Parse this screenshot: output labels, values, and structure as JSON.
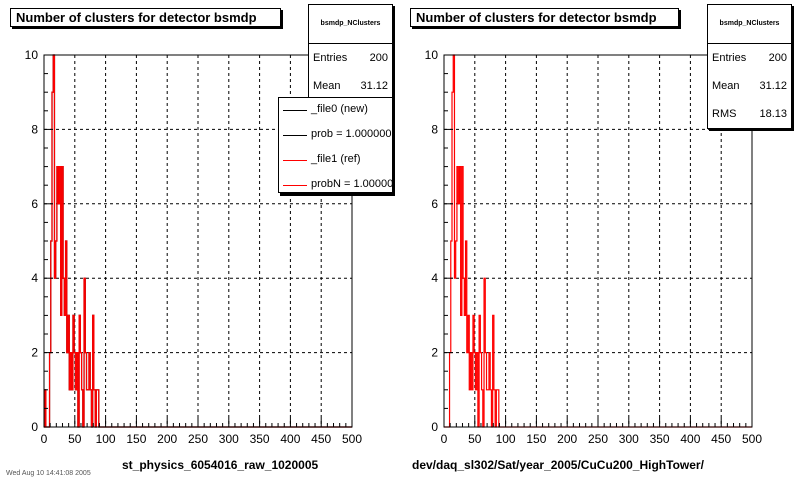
{
  "left_panel": {
    "title": "Number of clusters for detector bsmdp",
    "stats": {
      "name": "bsmdp_NClusters",
      "rows": [
        {
          "label": "Entries",
          "value": "200"
        },
        {
          "label": "Mean",
          "value": "31.12"
        }
      ]
    },
    "legend": [
      {
        "label": "_file0 (new)",
        "color": "#000000"
      },
      {
        "label": "prob = 1.000000",
        "color": "#000000"
      },
      {
        "label": "_file1 (ref)",
        "color": "#ff0000"
      },
      {
        "label": "probN = 1.000000",
        "color": "#ff0000"
      }
    ],
    "xtitle": "st_physics_6054016_raw_1020005"
  },
  "right_panel": {
    "title": "Number of clusters for detector bsmdp",
    "stats": {
      "name": "bsmdp_NClusters",
      "rows": [
        {
          "label": "Entries",
          "value": "200"
        },
        {
          "label": "Mean",
          "value": "31.12"
        },
        {
          "label": "RMS",
          "value": "18.13"
        }
      ]
    },
    "xtitle": "dev/daq_sl302/Sat/year_2005/CuCu200_HighTower/"
  },
  "footer": "Wed Aug 10 14:41:08 2005",
  "chart_data": [
    {
      "type": "histogram",
      "title": "Number of clusters for detector bsmdp",
      "xlabel": "st_physics_6054016_raw_1020005",
      "xlim": [
        0,
        500
      ],
      "ylim": [
        0,
        10
      ],
      "xticks": [
        0,
        50,
        100,
        150,
        200,
        250,
        300,
        350,
        400,
        450,
        500
      ],
      "yticks": [
        0,
        2,
        4,
        6,
        8,
        10
      ],
      "grid": true,
      "bin_width": 2,
      "series": [
        {
          "name": "_file0 (new)",
          "color": "#000000",
          "bins": [
            2,
            4,
            6,
            8,
            10,
            12,
            14,
            16,
            18,
            20,
            22,
            24,
            26,
            28,
            30,
            32,
            34,
            36,
            38,
            40,
            42,
            44,
            46,
            48,
            50,
            52,
            54,
            56,
            58,
            60,
            62,
            64,
            66,
            68,
            70,
            72,
            74,
            76,
            78,
            80,
            82,
            84,
            86,
            88,
            90
          ],
          "values": [
            1,
            0,
            0,
            0,
            2,
            5,
            9,
            10,
            4,
            5,
            7,
            6,
            7,
            3,
            7,
            4,
            3,
            5,
            2,
            3,
            1,
            2,
            1,
            3,
            2,
            1,
            2,
            0,
            3,
            2,
            1,
            0,
            4,
            2,
            1,
            1,
            2,
            1,
            0,
            3,
            1,
            0,
            1,
            1,
            0
          ]
        },
        {
          "name": "_file1 (ref)",
          "color": "#ff0000",
          "bins": [
            2,
            4,
            6,
            8,
            10,
            12,
            14,
            16,
            18,
            20,
            22,
            24,
            26,
            28,
            30,
            32,
            34,
            36,
            38,
            40,
            42,
            44,
            46,
            48,
            50,
            52,
            54,
            56,
            58,
            60,
            62,
            64,
            66,
            68,
            70,
            72,
            74,
            76,
            78,
            80,
            82,
            84,
            86,
            88,
            90
          ],
          "values": [
            1,
            0,
            0,
            0,
            2,
            5,
            9,
            10,
            4,
            5,
            7,
            6,
            7,
            3,
            7,
            4,
            3,
            5,
            2,
            3,
            1,
            2,
            1,
            3,
            2,
            1,
            2,
            0,
            3,
            2,
            1,
            0,
            4,
            2,
            1,
            1,
            2,
            1,
            0,
            3,
            1,
            0,
            1,
            1,
            0
          ]
        }
      ]
    },
    {
      "type": "histogram",
      "title": "Number of clusters for detector bsmdp",
      "xlabel": "dev/daq_sl302/Sat/year_2005/CuCu200_HighTower/",
      "xlim": [
        0,
        500
      ],
      "ylim": [
        0,
        10
      ],
      "xticks": [
        0,
        50,
        100,
        150,
        200,
        250,
        300,
        350,
        400,
        450,
        500
      ],
      "yticks": [
        0,
        2,
        4,
        6,
        8,
        10
      ],
      "grid": true,
      "bin_width": 2,
      "series": [
        {
          "name": "bsmdp_NClusters",
          "color": "#ff0000",
          "bins": [
            2,
            4,
            6,
            8,
            10,
            12,
            14,
            16,
            18,
            20,
            22,
            24,
            26,
            28,
            30,
            32,
            34,
            36,
            38,
            40,
            42,
            44,
            46,
            48,
            50,
            52,
            54,
            56,
            58,
            60,
            62,
            64,
            66,
            68,
            70,
            72,
            74,
            76,
            78,
            80,
            82,
            84,
            86,
            88,
            90
          ],
          "values": [
            0,
            0,
            0,
            0,
            2,
            5,
            9,
            10,
            4,
            5,
            7,
            6,
            7,
            3,
            7,
            4,
            3,
            5,
            2,
            3,
            1,
            2,
            1,
            3,
            2,
            1,
            2,
            0,
            3,
            2,
            1,
            0,
            4,
            2,
            1,
            1,
            2,
            1,
            0,
            3,
            1,
            0,
            1,
            1,
            0
          ]
        }
      ]
    }
  ]
}
